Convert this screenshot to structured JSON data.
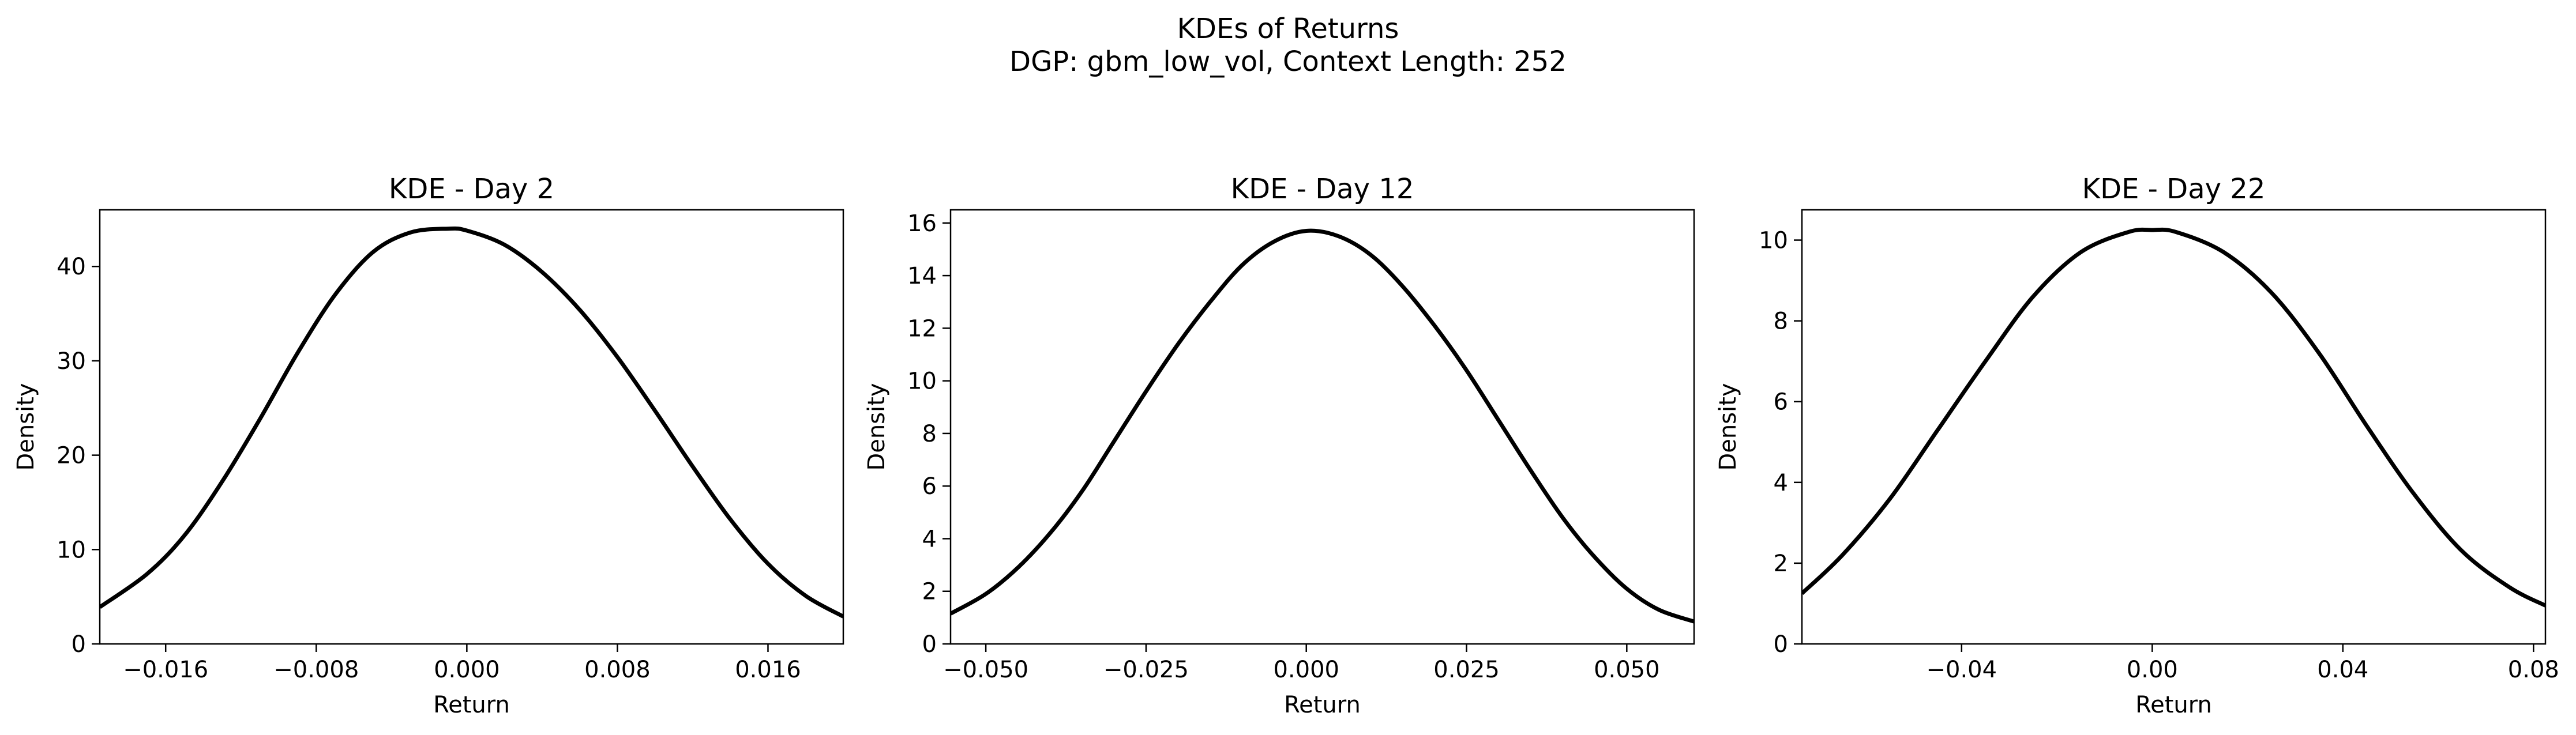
{
  "figure": {
    "title_line1": "KDEs of Returns",
    "title_line2": "DGP: gbm_low_vol, Context Length: 252"
  },
  "chart_data": [
    {
      "type": "line",
      "title": "KDE - Day 2",
      "xlabel": "Return",
      "ylabel": "Density",
      "xlim": [
        -0.0195,
        0.02
      ],
      "ylim": [
        0,
        46
      ],
      "x_ticks": [
        -0.016,
        -0.008,
        0.0,
        0.008,
        0.016
      ],
      "x_tick_labels": [
        "−0.016",
        "−0.008",
        "0.000",
        "0.008",
        "0.016"
      ],
      "y_ticks": [
        0,
        10,
        20,
        30,
        40
      ],
      "y_tick_labels": [
        "0",
        "10",
        "20",
        "30",
        "40"
      ],
      "series": [
        {
          "color": "#000000",
          "x": [
            -0.0195,
            -0.017,
            -0.015,
            -0.013,
            -0.011,
            -0.009,
            -0.007,
            -0.005,
            -0.003,
            -0.001,
            0.0,
            0.002,
            0.004,
            0.006,
            0.008,
            0.01,
            0.012,
            0.014,
            0.016,
            0.018,
            0.02
          ],
          "y": [
            3.9,
            7.4,
            11.5,
            17.2,
            23.8,
            30.8,
            37.0,
            41.5,
            43.6,
            44.0,
            43.8,
            42.3,
            39.4,
            35.4,
            30.4,
            24.7,
            18.8,
            13.2,
            8.5,
            5.1,
            2.9
          ]
        }
      ]
    },
    {
      "type": "line",
      "title": "KDE - Day 12",
      "xlabel": "Return",
      "ylabel": "Density",
      "xlim": [
        -0.0555,
        0.0605
      ],
      "ylim": [
        0,
        16.5
      ],
      "x_ticks": [
        -0.05,
        -0.025,
        0.0,
        0.025,
        0.05
      ],
      "x_tick_labels": [
        "−0.050",
        "−0.025",
        "0.000",
        "0.025",
        "0.050"
      ],
      "y_ticks": [
        0,
        2,
        4,
        6,
        8,
        10,
        12,
        14,
        16
      ],
      "y_tick_labels": [
        "0",
        "2",
        "4",
        "6",
        "8",
        "10",
        "12",
        "14",
        "16"
      ],
      "series": [
        {
          "color": "#000000",
          "x": [
            -0.0555,
            -0.05,
            -0.045,
            -0.04,
            -0.035,
            -0.03,
            -0.025,
            -0.02,
            -0.015,
            -0.01,
            -0.005,
            0.0,
            0.005,
            0.01,
            0.015,
            0.02,
            0.025,
            0.03,
            0.035,
            0.04,
            0.045,
            0.05,
            0.055,
            0.0605
          ],
          "y": [
            1.15,
            1.9,
            2.9,
            4.2,
            5.8,
            7.7,
            9.6,
            11.4,
            13.0,
            14.4,
            15.3,
            15.7,
            15.5,
            14.8,
            13.6,
            12.1,
            10.4,
            8.5,
            6.6,
            4.8,
            3.3,
            2.1,
            1.3,
            0.85
          ]
        }
      ]
    },
    {
      "type": "line",
      "title": "KDE - Day 22",
      "xlabel": "Return",
      "ylabel": "Density",
      "xlim": [
        -0.0735,
        0.0825
      ],
      "ylim": [
        0,
        10.75
      ],
      "x_ticks": [
        -0.04,
        0.0,
        0.04,
        0.08
      ],
      "x_tick_labels": [
        "−0.04",
        "0.00",
        "0.04",
        "0.08"
      ],
      "y_ticks": [
        0,
        2,
        4,
        6,
        8,
        10
      ],
      "y_tick_labels": [
        "0",
        "2",
        "4",
        "6",
        "8",
        "10"
      ],
      "series": [
        {
          "color": "#000000",
          "x": [
            -0.0735,
            -0.065,
            -0.055,
            -0.045,
            -0.035,
            -0.025,
            -0.015,
            -0.005,
            0.0,
            0.005,
            0.015,
            0.025,
            0.035,
            0.045,
            0.055,
            0.065,
            0.075,
            0.0825
          ],
          "y": [
            1.25,
            2.2,
            3.6,
            5.3,
            7.0,
            8.6,
            9.7,
            10.2,
            10.25,
            10.2,
            9.7,
            8.7,
            7.2,
            5.4,
            3.7,
            2.3,
            1.4,
            0.95
          ]
        }
      ]
    }
  ]
}
